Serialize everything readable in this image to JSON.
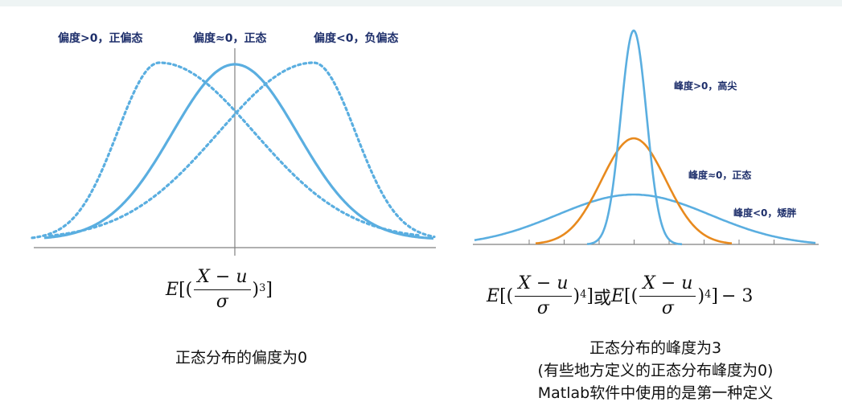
{
  "skewness": {
    "labels": {
      "positive": "偏度>0，正偏态",
      "zero": "偏度≈0，正态",
      "negative": "偏度<0，负偏态"
    },
    "formula": {
      "E": "E",
      "open": "[(",
      "numerator": "X − u",
      "denominator": "σ",
      "close": ")",
      "power": "3",
      "end": "]"
    },
    "caption": "正态分布的偏度为0"
  },
  "kurtosis": {
    "labels": {
      "high": "峰度>0，高尖",
      "normal": "峰度≈0，正态",
      "low": "峰度<0，矮胖"
    },
    "formula": {
      "E1": "E",
      "open1": "[(",
      "numerator1": "X − u",
      "denominator1": "σ",
      "close1": ")",
      "power1": "4",
      "end1": "]",
      "or": "或",
      "E2": "E",
      "open2": "[(",
      "numerator2": "X − u",
      "denominator2": "σ",
      "close2": ")",
      "power2": "4",
      "end2": "]",
      "minus3": "− 3"
    },
    "caption_line1": "正态分布的峰度为3",
    "caption_line2": "(有些地方定义的正态分布峰度为0)",
    "caption_line3": "Matlab软件中使用的是第一种定义"
  },
  "colors": {
    "light_blue": "#5aaee0",
    "orange": "#e88a1e",
    "axis": "#808080",
    "label_navy": "#1e2f6b"
  }
}
